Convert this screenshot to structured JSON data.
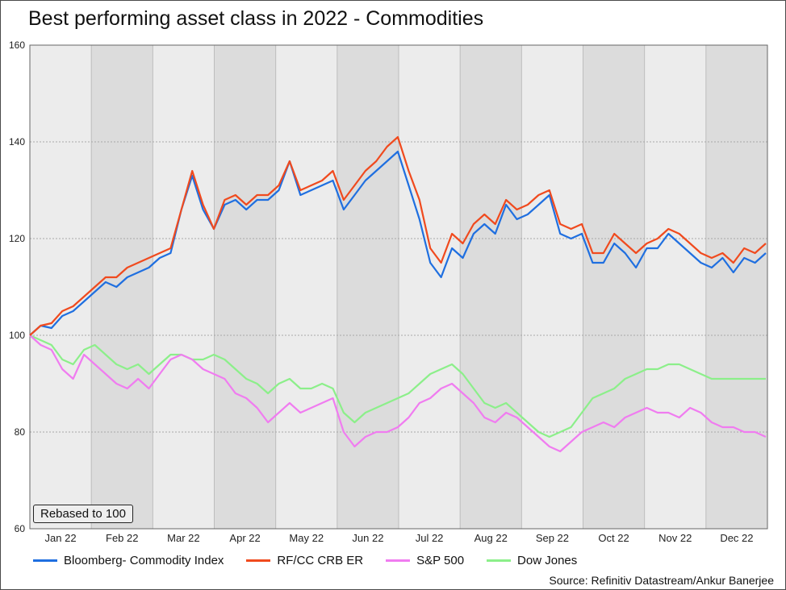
{
  "title": "Best performing asset class in 2022 - Commodities",
  "note": "Rebased to 100",
  "source": "Source: Refinitiv Datastream/Ankur Banerjee",
  "chart_data": {
    "type": "line",
    "title": "Best performing asset class in 2022 - Commodities",
    "xlabel": "",
    "ylabel": "",
    "ylim": [
      60,
      160
    ],
    "yticks": [
      60,
      80,
      100,
      120,
      140,
      160
    ],
    "x_ticks": [
      "Jan 22",
      "Feb 22",
      "Mar 22",
      "Apr 22",
      "May 22",
      "Jun 22",
      "Jul 22",
      "Aug 22",
      "Sep 22",
      "Oct 22",
      "Nov 22",
      "Dec 22"
    ],
    "grid": true,
    "legend_position": "bottom",
    "series": [
      {
        "name": "Bloomberg- Commodity Index",
        "color": "#1f6fe0",
        "values": [
          100,
          102,
          101.5,
          104,
          105,
          107,
          109,
          111,
          110,
          112,
          113,
          114,
          116,
          117,
          126,
          133,
          126,
          122,
          127,
          128,
          126,
          128,
          128,
          130,
          136,
          129,
          130,
          131,
          132,
          126,
          129,
          132,
          134,
          136,
          138,
          131,
          124,
          115,
          112,
          118,
          116,
          121,
          123,
          121,
          127,
          124,
          125,
          127,
          129,
          121,
          120,
          121,
          115,
          115,
          119,
          117,
          114,
          118,
          118,
          121,
          119,
          117,
          115,
          114,
          116,
          113,
          116,
          115,
          117
        ]
      },
      {
        "name": "RF/CC CRB ER",
        "color": "#f04a1e",
        "values": [
          100,
          102,
          102.5,
          105,
          106,
          108,
          110,
          112,
          112,
          114,
          115,
          116,
          117,
          118,
          126,
          134,
          127,
          122,
          128,
          129,
          127,
          129,
          129,
          131,
          136,
          130,
          131,
          132,
          134,
          128,
          131,
          134,
          136,
          139,
          141,
          134,
          128,
          118,
          115,
          121,
          119,
          123,
          125,
          123,
          128,
          126,
          127,
          129,
          130,
          123,
          122,
          123,
          117,
          117,
          121,
          119,
          117,
          119,
          120,
          122,
          121,
          119,
          117,
          116,
          117,
          115,
          118,
          117,
          119
        ]
      },
      {
        "name": "S&P 500",
        "color": "#f07cf0",
        "values": [
          100,
          98,
          97,
          93,
          91,
          96,
          94,
          92,
          90,
          89,
          91,
          89,
          92,
          95,
          96,
          95,
          93,
          92,
          91,
          88,
          87,
          85,
          82,
          84,
          86,
          84,
          85,
          86,
          87,
          80,
          77,
          79,
          80,
          80,
          81,
          83,
          86,
          87,
          89,
          90,
          88,
          86,
          83,
          82,
          84,
          83,
          81,
          79,
          77,
          76,
          78,
          80,
          81,
          82,
          81,
          83,
          84,
          85,
          84,
          84,
          83,
          85,
          84,
          82,
          81,
          81,
          80,
          80,
          79
        ]
      },
      {
        "name": "Dow Jones",
        "color": "#8cef8a",
        "values": [
          100,
          99,
          98,
          95,
          94,
          97,
          98,
          96,
          94,
          93,
          94,
          92,
          94,
          96,
          96,
          95,
          95,
          96,
          95,
          93,
          91,
          90,
          88,
          90,
          91,
          89,
          89,
          90,
          89,
          84,
          82,
          84,
          85,
          86,
          87,
          88,
          90,
          92,
          93,
          94,
          92,
          89,
          86,
          85,
          86,
          84,
          82,
          80,
          79,
          80,
          81,
          84,
          87,
          88,
          89,
          91,
          92,
          93,
          93,
          94,
          94,
          93,
          92,
          91,
          91,
          91,
          91,
          91,
          91
        ]
      }
    ]
  }
}
